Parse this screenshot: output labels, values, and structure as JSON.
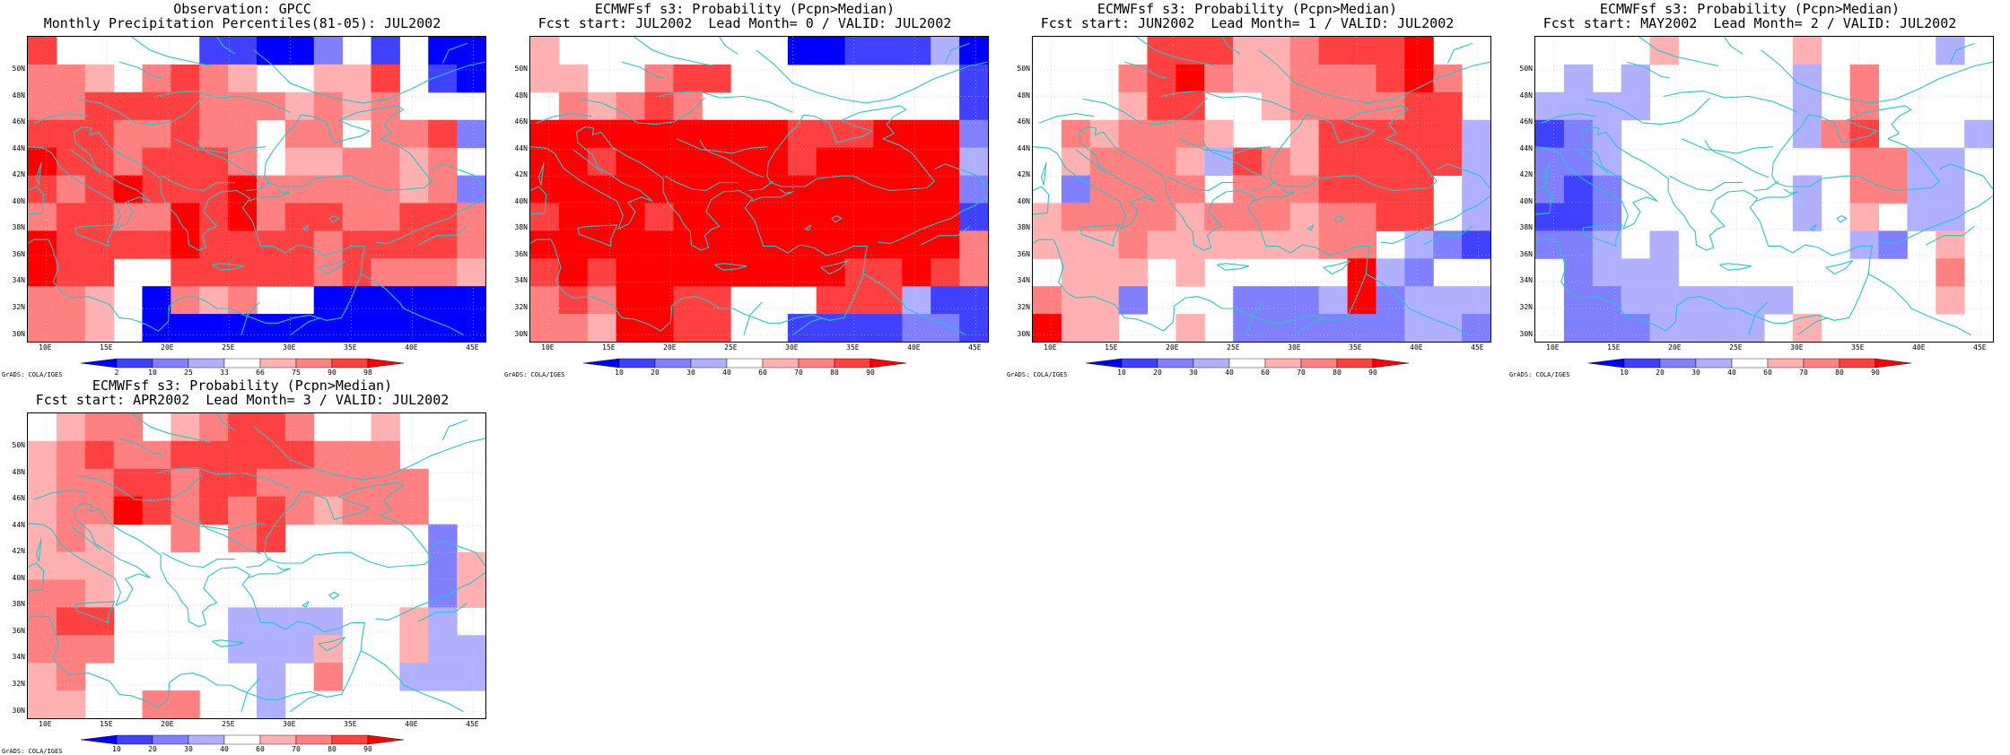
{
  "credit_text": "GrADS: COLA/IGES",
  "y_ticks": [
    "50N",
    "48N",
    "46N",
    "44N",
    "42N",
    "40N",
    "38N",
    "36N",
    "34N",
    "32N",
    "30N"
  ],
  "x_ticks": [
    "10E",
    "15E",
    "20E",
    "25E",
    "30E",
    "35E",
    "40E",
    "45E"
  ],
  "colorbar_percentile": {
    "labels": [
      "2",
      "10",
      "25",
      "33",
      "66",
      "75",
      "90",
      "98"
    ],
    "colors": [
      "#0000ff",
      "#4040ff",
      "#8080ff",
      "#b0b0ff",
      "#ffffff",
      "#ffb0b0",
      "#ff8080",
      "#ff4040",
      "#ff0000"
    ]
  },
  "colorbar_probability": {
    "labels": [
      "10",
      "20",
      "30",
      "40",
      "60",
      "70",
      "80",
      "90"
    ],
    "colors": [
      "#0000ff",
      "#4040ff",
      "#8080ff",
      "#b0b0ff",
      "#ffffff",
      "#ffb0b0",
      "#ff8080",
      "#ff4040",
      "#ff0000"
    ]
  },
  "map_colors": {
    "coast": "#22c8c8",
    "grid": "#c8c8c8",
    "palette": [
      "#0000ff",
      "#4040ff",
      "#8080ff",
      "#b0b0ff",
      "#ffffff",
      "#ffb0b0",
      "#ff8080",
      "#ff4040",
      "#ff0000"
    ]
  },
  "panels": [
    {
      "title_line1": "Observation: GPCC",
      "title_line2": "Monthly Precipitation Percentiles(81-05): JUL2002",
      "colorbar": "percentile",
      "grid": [
        "7 4 4 4 4 4 1 1 0 0 2 4 1 4 0 0",
        "6 6 5 4 6 7 6 5 4 4 5 5 7 4 1 0",
        "6 6 7 7 7 7 6 6 6 5 6 5 6 4 4 4",
        "7 7 7 6 6 7 6 6 4 6 6 4 6 6 7 2",
        "8 7 7 6 7 7 7 6 4 5 5 6 6 5 6 4",
        "7 6 7 8 7 7 7 8 6 6 6 6 6 5 6 2",
        "6 7 7 6 6 8 7 8 6 7 7 6 6 7 7 6",
        "8 7 7 7 7 8 7 7 7 7 6 7 7 7 7 6",
        "8 7 7 4 4 7 7 7 7 7 6 7 6 6 6 5",
        "6 6 5 4 0 6 5 6 4 4 0 0 0 0 0 0",
        "6 6 5 4 0 0 0 0 0 0 0 0 0 0 0 0"
      ]
    },
    {
      "title_line1": "ECMWFsf s3: Probability (Pcpn>Median)",
      "title_line2": "Fcst start: JUL2002  Lead Month= 0 / VALID: JUL2002",
      "colorbar": "probability",
      "grid": [
        "5 4 4 4 4 4 4 4 4 0 0 1 1 1 3 0",
        "5 5 4 4 6 7 7 4 4 4 4 4 4 4 4 1",
        "4 6 5 6 7 6 4 4 4 4 4 4 4 4 4 1",
        "8 8 8 8 8 8 8 8 8 7 7 7 8 8 8 2",
        "8 8 7 8 8 8 8 8 8 7 8 8 8 8 8 3",
        "8 8 8 8 8 8 8 8 8 8 8 8 8 8 8 2",
        "7 8 8 8 7 8 8 8 8 8 8 8 8 8 8 1",
        "8 8 8 8 8 8 8 8 8 8 8 8 8 8 8 6",
        "7 8 7 8 8 8 8 8 8 8 8 7 7 8 7 6",
        "6 7 6 8 8 7 7 4 4 4 7 7 7 3 1 1",
        "6 6 5 8 8 7 7 4 4 1 1 1 1 2 2 1"
      ]
    },
    {
      "title_line1": "ECMWFsf s3: Probability (Pcpn>Median)",
      "title_line2": "Fcst start: JUN2002  Lead Month= 1 / VALID: JUL2002",
      "colorbar": "probability",
      "grid": [
        "4 4 4 4 7 7 7 5 5 6 7 7 7 8 4 4",
        "4 4 4 6 7 8 6 5 5 6 6 6 7 8 6 4",
        "4 4 4 5 7 7 4 4 5 6 6 6 6 7 7 4",
        "4 6 5 6 6 6 5 4 4 5 7 7 7 7 7 3",
        "4 5 6 6 6 5 3 7 6 5 7 7 7 7 7 3",
        "4 2 6 6 6 6 4 6 6 6 7 7 7 7 4 3",
        "5 6 6 6 6 5 6 6 6 5 6 6 7 7 4 3",
        "5 5 5 6 5 5 5 5 5 5 6 6 4 3 2 1",
        "4 5 5 5 4 5 4 4 4 4 4 8 3 2 4 4",
        "6 5 5 2 4 4 4 2 2 2 3 8 2 3 3 3",
        "8 5 5 4 4 5 4 2 2 2 2 2 2 3 3 2"
      ]
    },
    {
      "title_line1": "ECMWFsf s3: Probability (Pcpn>Median)",
      "title_line2": "Fcst start: MAY2002  Lead Month= 2 / VALID: JUL2002",
      "colorbar": "probability",
      "grid": [
        "4 4 4 4 5 4 4 4 4 5 4 4 4 4 3 4",
        "4 3 4 3 4 4 4 4 4 3 4 6 4 4 4 4",
        "3 3 3 3 4 4 4 4 4 3 4 6 4 4 4 4",
        "1 2 3 4 4 4 4 4 4 3 6 7 4 4 4 3",
        "2 2 3 4 4 4 4 4 4 4 4 6 6 3 3 4",
        "2 1 2 4 4 4 4 4 4 3 4 6 6 3 3 4",
        "1 1 2 4 4 4 4 4 4 3 4 5 4 3 3 4",
        "2 2 3 4 3 4 4 4 4 4 4 3 2 4 5 4",
        "4 2 3 3 3 4 4 4 4 4 4 4 4 4 6 4",
        "4 2 2 3 3 3 3 3 3 4 4 4 4 4 5 4",
        "4 2 2 2 3 3 3 3 4 5 4 4 4 4 4 4"
      ]
    },
    {
      "title_line1": "ECMWFsf s3: Probability (Pcpn>Median)",
      "title_line2": "Fcst start: APR2002  Lead Month= 3 / VALID: JUL2002",
      "colorbar": "probability",
      "grid": [
        "4 5 6 6 4 5 6 7 7 6 4 4 5 4 4 4",
        "5 6 7 6 6 7 7 7 7 7 6 6 6 4 4 4",
        "5 6 6 7 7 6 7 7 6 6 6 6 6 6 4 4",
        "5 6 6 8 7 6 7 6 7 6 5 6 6 6 4 4",
        "5 6 5 4 4 6 4 6 7 4 4 4 4 4 2 4",
        "5 5 5 4 4 4 4 4 4 4 4 4 4 4 2 5",
        "6 6 5 4 4 4 4 4 4 4 4 4 4 4 2 5",
        "6 7 7 4 4 4 4 3 3 3 3 4 4 5 3 4",
        "6 6 6 4 4 4 4 3 3 3 5 4 4 5 3 3",
        "5 6 4 4 4 4 4 4 3 4 6 4 4 3 3 3",
        "5 5 4 4 6 6 4 4 3 4 4 4 4 4 4 4"
      ]
    }
  ]
}
